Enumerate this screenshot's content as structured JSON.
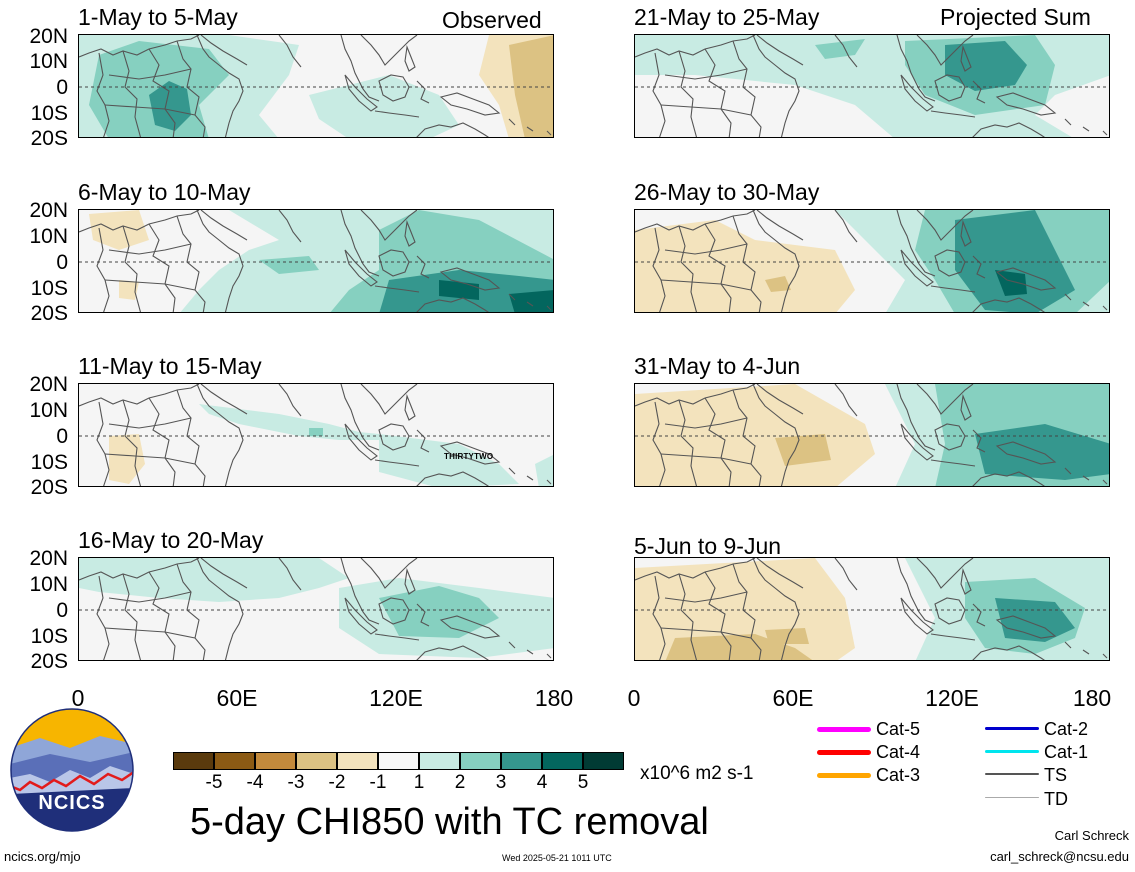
{
  "panels": [
    {
      "title": "1-May to 5-May",
      "note": "Observed"
    },
    {
      "title": "6-May to 10-May",
      "note": ""
    },
    {
      "title": "11-May to 15-May",
      "note": ""
    },
    {
      "title": "16-May to 20-May",
      "note": ""
    },
    {
      "title": "21-May to 25-May",
      "note": "Projected Sum"
    },
    {
      "title": "26-May to 30-May",
      "note": ""
    },
    {
      "title": "31-May to 4-Jun",
      "note": ""
    },
    {
      "title": "5-Jun to 9-Jun",
      "note": ""
    }
  ],
  "lat_labels": [
    "20N",
    "10N",
    "0",
    "10S",
    "20S"
  ],
  "lon_labels": [
    "0",
    "60E",
    "120E",
    "180"
  ],
  "storm_label": "THIRTYTWO",
  "colorbar": {
    "ticks": [
      "-5",
      "-4",
      "-3",
      "-2",
      "-1",
      "1",
      "2",
      "3",
      "4",
      "5"
    ],
    "colors": [
      "#5a3a0d",
      "#8b5a14",
      "#c38a3c",
      "#dcc283",
      "#f3e3bd",
      "#f7f7f7",
      "#c8ebe3",
      "#86d0c0",
      "#35978e",
      "#03665e",
      "#013b34"
    ],
    "units": "x10^6 m2 s-1"
  },
  "main_title": "5-day CHI850 with TC removal",
  "logo_text": "NCICS",
  "website": "ncics.org/mjo",
  "timestamp": "Wed 2025-05-21 1011 UTC",
  "author": "Carl Schreck",
  "email": "carl_schreck@ncsu.edu",
  "legend": [
    {
      "label": "Cat-5",
      "color": "#ff00ff"
    },
    {
      "label": "Cat-4",
      "color": "#ff0000"
    },
    {
      "label": "Cat-3",
      "color": "#ffa500"
    },
    {
      "label": "Cat-2",
      "color": "#0000cd"
    },
    {
      "label": "Cat-1",
      "color": "#00e5ee"
    },
    {
      "label": "TS",
      "color": "#555555"
    },
    {
      "label": "TD",
      "color": "#aaaaaa"
    }
  ]
}
